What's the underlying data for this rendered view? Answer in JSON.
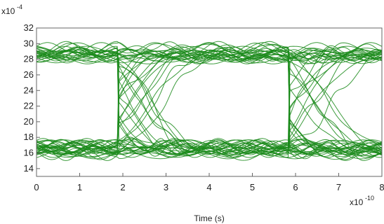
{
  "chart_data": {
    "type": "line",
    "title": "",
    "xlabel": "Time (s)",
    "ylabel": "",
    "x_multiplier": {
      "base": "x10",
      "exponent": "-10"
    },
    "y_multiplier": {
      "base": "x10",
      "exponent": "-4"
    },
    "xlim": [
      0,
      8
    ],
    "ylim": [
      13,
      32
    ],
    "x_ticks": [
      "0",
      "1",
      "2",
      "3",
      "4",
      "5",
      "6",
      "7",
      "8"
    ],
    "x_tick_values": [
      0,
      1,
      2,
      3,
      4,
      5,
      6,
      7,
      8
    ],
    "y_ticks": [
      "14",
      "16",
      "18",
      "20",
      "22",
      "24",
      "26",
      "28",
      "30",
      "32"
    ],
    "y_tick_values": [
      14,
      16,
      18,
      20,
      22,
      24,
      26,
      28,
      30,
      32
    ],
    "grid": false,
    "legend": "none",
    "trace_color": "#1a8a1a",
    "eye_diagram": {
      "high_level": 28.7,
      "low_level": 16.5,
      "crossing_level": 22.2,
      "crossing_times": [
        1.9,
        5.85
      ],
      "bit_period": 3.95,
      "trace_count": 60
    }
  }
}
